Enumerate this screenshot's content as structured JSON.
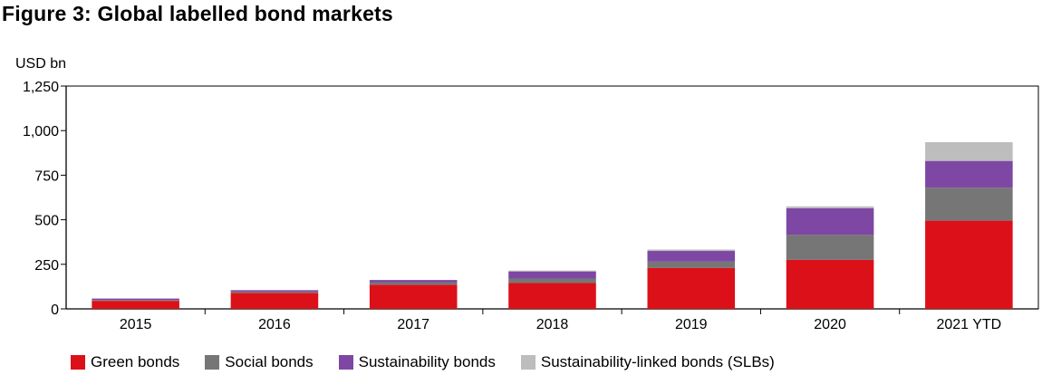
{
  "chart_data": {
    "type": "bar",
    "stacked": true,
    "title": "Figure 3: Global labelled bond markets",
    "ylabel": "USD bn",
    "xlabel": "",
    "ylim": [
      0,
      1250
    ],
    "yticks": [
      "0",
      "250",
      "500",
      "750",
      "1,000",
      "1,250"
    ],
    "ytick_values": [
      0,
      250,
      500,
      750,
      1000,
      1250
    ],
    "grid": false,
    "legend_position": "bottom",
    "categories": [
      "2015",
      "2016",
      "2017",
      "2018",
      "2019",
      "2020",
      "2021 YTD"
    ],
    "series": [
      {
        "name": "Green bonds",
        "color": "#dc1018",
        "values": [
          45,
          90,
          135,
          145,
          230,
          275,
          495
        ]
      },
      {
        "name": "Social bonds",
        "color": "#767676",
        "values": [
          5,
          7,
          15,
          25,
          35,
          140,
          185
        ]
      },
      {
        "name": "Sustainability bonds",
        "color": "#7d47a3",
        "values": [
          8,
          8,
          12,
          40,
          60,
          150,
          150
        ]
      },
      {
        "name": "Sustainability-linked bonds (SLBs)",
        "color": "#bdbdbd",
        "values": [
          0,
          0,
          0,
          5,
          8,
          10,
          105
        ]
      }
    ]
  }
}
